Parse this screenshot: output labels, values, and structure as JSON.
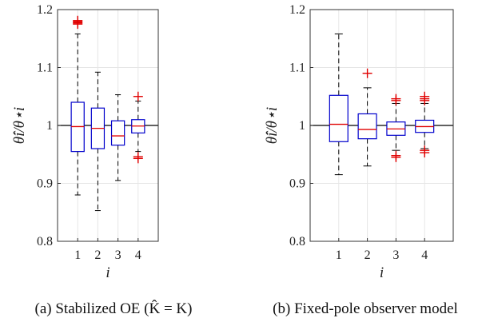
{
  "chart_data": [
    {
      "type": "box",
      "title": "",
      "caption": "(a) Stabilized OE (K̂ = K)",
      "xlabel": "i",
      "ylabel": "θ̂i/θ⋆i",
      "ylim": [
        0.8,
        1.2
      ],
      "yticks": [
        "0.8",
        "0.9",
        "1",
        "1.1",
        "1.2"
      ],
      "categories": [
        "1",
        "2",
        "3",
        "4"
      ],
      "reference_line": 1.0,
      "grid": true,
      "boxes": [
        {
          "q1": 0.955,
          "median": 0.998,
          "q3": 1.04,
          "whisker_low": 0.88,
          "whisker_high": 1.158,
          "outliers": [
            1.175,
            1.177,
            1.179,
            1.181
          ]
        },
        {
          "q1": 0.96,
          "median": 0.995,
          "q3": 1.03,
          "whisker_low": 0.853,
          "whisker_high": 1.092,
          "outliers": []
        },
        {
          "q1": 0.966,
          "median": 0.982,
          "q3": 1.008,
          "whisker_low": 0.905,
          "whisker_high": 1.053,
          "outliers": []
        },
        {
          "q1": 0.987,
          "median": 0.999,
          "q3": 1.01,
          "whisker_low": 0.955,
          "whisker_high": 1.042,
          "outliers": [
            1.05,
            0.943,
            0.946
          ]
        }
      ]
    },
    {
      "type": "box",
      "title": "",
      "caption": "(b) Fixed-pole observer model",
      "xlabel": "i",
      "ylabel": "θ̂i/θ⋆i",
      "ylim": [
        0.8,
        1.2
      ],
      "yticks": [
        "0.8",
        "0.9",
        "1",
        "1.1",
        "1.2"
      ],
      "categories": [
        "1",
        "2",
        "3",
        "4"
      ],
      "reference_line": 1.0,
      "grid": true,
      "boxes": [
        {
          "q1": 0.972,
          "median": 1.002,
          "q3": 1.052,
          "whisker_low": 0.915,
          "whisker_high": 1.158,
          "outliers": []
        },
        {
          "q1": 0.977,
          "median": 0.993,
          "q3": 1.02,
          "whisker_low": 0.93,
          "whisker_high": 1.065,
          "outliers": [
            1.09
          ]
        },
        {
          "q1": 0.983,
          "median": 0.994,
          "q3": 1.006,
          "whisker_low": 0.957,
          "whisker_high": 1.038,
          "outliers": [
            1.043,
            1.046,
            0.945,
            0.948
          ]
        },
        {
          "q1": 0.988,
          "median": 0.998,
          "q3": 1.009,
          "whisker_low": 0.96,
          "whisker_high": 1.038,
          "outliers": [
            1.043,
            1.046,
            1.05,
            0.953,
            0.957
          ]
        }
      ]
    }
  ],
  "colors": {
    "box": "#0000cc",
    "median": "#e00000",
    "outlier": "#e00000",
    "whisker": "#000000",
    "grid": "#e6e6e6",
    "axis": "#333333"
  }
}
